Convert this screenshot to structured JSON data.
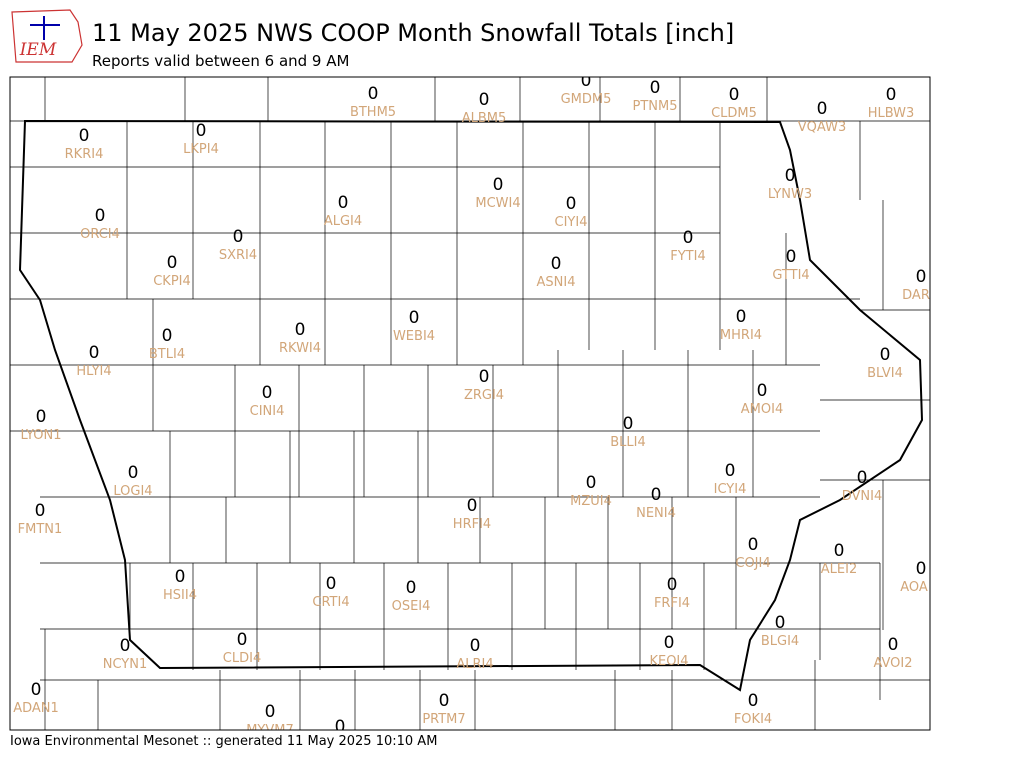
{
  "header": {
    "logo": "IEM",
    "title": "11 May 2025 NWS COOP Month Snowfall Totals [inch]",
    "subtitle": "Reports valid between 6 and 9 AM"
  },
  "stations": [
    {
      "value": 0,
      "id": "BTHM5"
    },
    {
      "value": 0,
      "id": "ALBM5"
    },
    {
      "value": 0,
      "id": "GMDM5"
    },
    {
      "value": 0,
      "id": "PTNM5"
    },
    {
      "value": 0,
      "id": "CLDM5"
    },
    {
      "value": 0,
      "id": "VQAW3"
    },
    {
      "value": 0,
      "id": "HLBW3"
    },
    {
      "value": 0,
      "id": "RKRI4"
    },
    {
      "value": 0,
      "id": "LKPI4"
    },
    {
      "value": 0,
      "id": "ALGI4"
    },
    {
      "value": 0,
      "id": "MCWI4"
    },
    {
      "value": 0,
      "id": "CIYI4"
    },
    {
      "value": 0,
      "id": "LYNW3"
    },
    {
      "value": 0,
      "id": "ORCI4"
    },
    {
      "value": 0,
      "id": "SXRI4"
    },
    {
      "value": 0,
      "id": "CKPI4"
    },
    {
      "value": 0,
      "id": "ASNI4"
    },
    {
      "value": 0,
      "id": "FYTI4"
    },
    {
      "value": 0,
      "id": "GTTI4"
    },
    {
      "value": 0,
      "id": "DAR"
    },
    {
      "value": 0,
      "id": "BTLI4"
    },
    {
      "value": 0,
      "id": "RKWI4"
    },
    {
      "value": 0,
      "id": "WEBI4"
    },
    {
      "value": 0,
      "id": "MHRI4"
    },
    {
      "value": 0,
      "id": "HLYI4"
    },
    {
      "value": 0,
      "id": "BLVI4"
    },
    {
      "value": 0,
      "id": "ZRGI4"
    },
    {
      "value": 0,
      "id": "CINI4"
    },
    {
      "value": 0,
      "id": "AMOI4"
    },
    {
      "value": 0,
      "id": "LYON1"
    },
    {
      "value": 0,
      "id": "BLLI4"
    },
    {
      "value": 0,
      "id": "LOGI4"
    },
    {
      "value": 0,
      "id": "ICYI4"
    },
    {
      "value": 0,
      "id": "DVNI4"
    },
    {
      "value": 0,
      "id": "MZUI4"
    },
    {
      "value": 0,
      "id": "NENI4"
    },
    {
      "value": 0,
      "id": "FMTN1"
    },
    {
      "value": 0,
      "id": "HRFI4"
    },
    {
      "value": 0,
      "id": "COJI4"
    },
    {
      "value": 0,
      "id": "ALEI2"
    },
    {
      "value": 0,
      "id": "AOA"
    },
    {
      "value": 0,
      "id": "HSII4"
    },
    {
      "value": 0,
      "id": "CRTI4"
    },
    {
      "value": 0,
      "id": "OSEI4"
    },
    {
      "value": 0,
      "id": "FRFI4"
    },
    {
      "value": 0,
      "id": "BLGI4"
    },
    {
      "value": 0,
      "id": "ALRI4"
    },
    {
      "value": 0,
      "id": "KEOI4"
    },
    {
      "value": 0,
      "id": "CLDI4"
    },
    {
      "value": 0,
      "id": "NCYN1"
    },
    {
      "value": 0,
      "id": "AVOI2"
    },
    {
      "value": 0,
      "id": "ADAN1"
    },
    {
      "value": 0,
      "id": "MYVM7"
    },
    {
      "value": 0,
      "id": "PRTM7"
    },
    {
      "value": 0,
      "id": "FOKI4"
    },
    {
      "value": 0
    }
  ],
  "footer": "Iowa Environmental Mesonet :: generated 11 May 2025 10:10 AM"
}
